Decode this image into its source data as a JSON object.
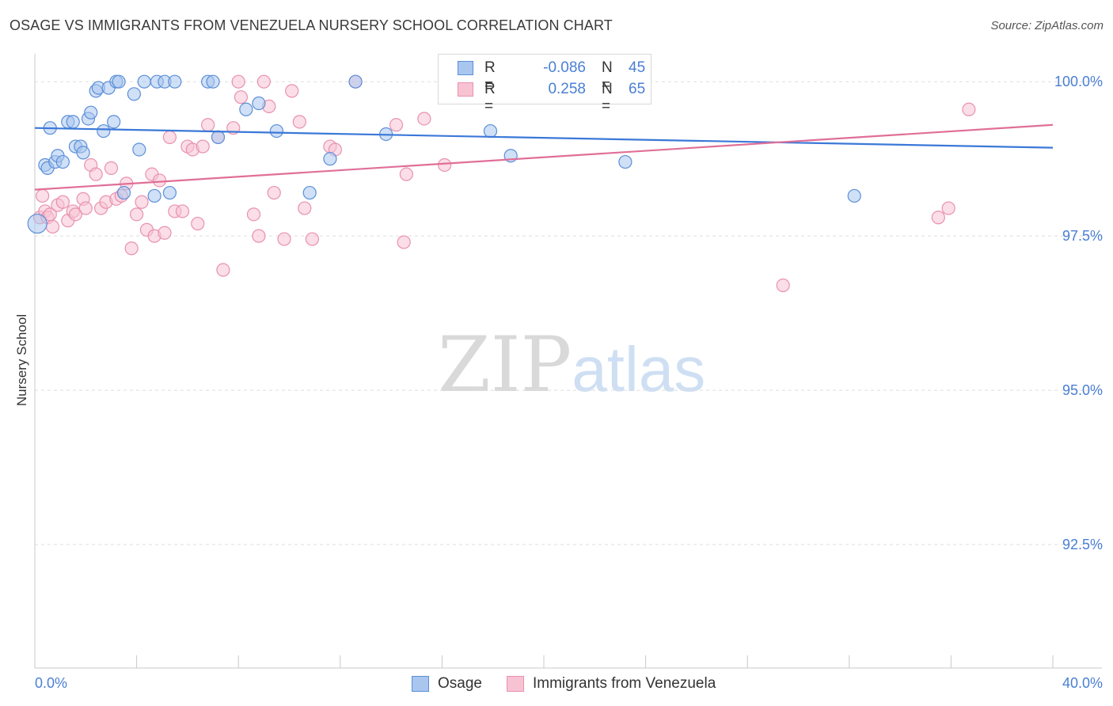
{
  "title": "OSAGE VS IMMIGRANTS FROM VENEZUELA NURSERY SCHOOL CORRELATION CHART",
  "source": "Source: ZipAtlas.com",
  "watermark": {
    "zip": "ZIP",
    "atlas": "atlas"
  },
  "colors": {
    "blue_fill": "#a9c6ef",
    "blue_stroke": "#5b8fd8",
    "blue_line": "#3b78d8",
    "pink_fill": "#f7c3d3",
    "pink_stroke": "#e891ae",
    "pink_line": "#e06f98",
    "tick_label": "#4a7fd4",
    "grid": "#dddddd"
  },
  "legend": {
    "rows": [
      {
        "r_label": "R =",
        "r_value": "-0.086",
        "n_label": "N =",
        "n_value": "45"
      },
      {
        "r_label": "R =",
        "r_value": "0.258",
        "n_label": "N =",
        "n_value": "65"
      }
    ]
  },
  "chart_data": {
    "type": "scatter",
    "xlabel": "",
    "ylabel": "Nursery School",
    "xlim": [
      0,
      40
    ],
    "ylim": [
      90.5,
      100.4
    ],
    "x_tick_labels": [
      "0.0%",
      "40.0%"
    ],
    "y_ticks": [
      92.5,
      95.0,
      97.5,
      100.0
    ],
    "y_tick_labels": [
      "92.5%",
      "95.0%",
      "97.5%",
      "100.0%"
    ],
    "grid": "horizontal dashed",
    "series": [
      {
        "name": "Osage",
        "trend": {
          "x": [
            0,
            40
          ],
          "y": [
            99.25,
            98.93
          ]
        },
        "points": [
          [
            0.1,
            97.7
          ],
          [
            0.4,
            98.65
          ],
          [
            0.5,
            98.6
          ],
          [
            0.6,
            99.25
          ],
          [
            0.8,
            98.7
          ],
          [
            0.9,
            98.8
          ],
          [
            1.1,
            98.7
          ],
          [
            1.3,
            99.35
          ],
          [
            1.5,
            99.35
          ],
          [
            1.6,
            98.95
          ],
          [
            1.8,
            98.95
          ],
          [
            1.9,
            98.85
          ],
          [
            2.1,
            99.4
          ],
          [
            2.2,
            99.5
          ],
          [
            2.4,
            99.85
          ],
          [
            2.5,
            99.9
          ],
          [
            2.7,
            99.2
          ],
          [
            2.9,
            99.9
          ],
          [
            3.1,
            99.35
          ],
          [
            3.2,
            100.0
          ],
          [
            3.3,
            100.0
          ],
          [
            3.5,
            98.2
          ],
          [
            3.9,
            99.8
          ],
          [
            4.1,
            98.9
          ],
          [
            4.3,
            100.0
          ],
          [
            4.7,
            98.15
          ],
          [
            4.8,
            100.0
          ],
          [
            5.1,
            100.0
          ],
          [
            5.3,
            98.2
          ],
          [
            5.5,
            100.0
          ],
          [
            6.8,
            100.0
          ],
          [
            7.0,
            100.0
          ],
          [
            7.2,
            99.1
          ],
          [
            8.3,
            99.55
          ],
          [
            8.8,
            99.65
          ],
          [
            9.5,
            99.2
          ],
          [
            10.8,
            98.2
          ],
          [
            11.6,
            98.75
          ],
          [
            12.6,
            100.0
          ],
          [
            13.8,
            99.15
          ],
          [
            17.9,
            99.2
          ],
          [
            18.7,
            98.8
          ],
          [
            21.2,
            100.0
          ],
          [
            23.2,
            98.7
          ],
          [
            32.2,
            98.15
          ]
        ]
      },
      {
        "name": "Immigrants from Venezuela",
        "trend": {
          "x": [
            0,
            40
          ],
          "y": [
            98.25,
            99.3
          ]
        },
        "points": [
          [
            0.2,
            97.8
          ],
          [
            0.3,
            98.15
          ],
          [
            0.4,
            97.9
          ],
          [
            0.5,
            97.8
          ],
          [
            0.6,
            97.85
          ],
          [
            0.7,
            97.65
          ],
          [
            0.9,
            98.0
          ],
          [
            1.1,
            98.05
          ],
          [
            1.3,
            97.75
          ],
          [
            1.5,
            97.9
          ],
          [
            1.6,
            97.85
          ],
          [
            1.9,
            98.1
          ],
          [
            2.0,
            97.95
          ],
          [
            2.2,
            98.65
          ],
          [
            2.4,
            98.5
          ],
          [
            2.6,
            97.95
          ],
          [
            2.8,
            98.05
          ],
          [
            3.0,
            98.6
          ],
          [
            3.2,
            98.1
          ],
          [
            3.4,
            98.15
          ],
          [
            3.6,
            98.35
          ],
          [
            3.8,
            97.3
          ],
          [
            4.0,
            97.85
          ],
          [
            4.2,
            98.05
          ],
          [
            4.4,
            97.6
          ],
          [
            4.6,
            98.5
          ],
          [
            4.7,
            97.5
          ],
          [
            4.9,
            98.4
          ],
          [
            5.1,
            97.55
          ],
          [
            5.3,
            99.1
          ],
          [
            5.5,
            97.9
          ],
          [
            5.8,
            97.9
          ],
          [
            6.0,
            98.95
          ],
          [
            6.2,
            98.9
          ],
          [
            6.4,
            97.7
          ],
          [
            6.6,
            98.95
          ],
          [
            6.8,
            99.3
          ],
          [
            7.2,
            99.1
          ],
          [
            7.4,
            96.95
          ],
          [
            7.8,
            99.25
          ],
          [
            8.0,
            100.0
          ],
          [
            8.1,
            99.75
          ],
          [
            8.6,
            97.85
          ],
          [
            8.8,
            97.5
          ],
          [
            9.0,
            100.0
          ],
          [
            9.2,
            99.6
          ],
          [
            9.4,
            98.2
          ],
          [
            9.8,
            97.45
          ],
          [
            10.1,
            99.85
          ],
          [
            10.4,
            99.35
          ],
          [
            10.6,
            97.95
          ],
          [
            10.9,
            97.45
          ],
          [
            11.6,
            98.95
          ],
          [
            11.8,
            98.9
          ],
          [
            12.6,
            100.0
          ],
          [
            14.2,
            99.3
          ],
          [
            14.5,
            97.4
          ],
          [
            14.6,
            98.5
          ],
          [
            15.3,
            99.4
          ],
          [
            16.1,
            98.65
          ],
          [
            21.1,
            100.0
          ],
          [
            29.4,
            96.7
          ],
          [
            35.5,
            97.8
          ],
          [
            35.9,
            97.95
          ],
          [
            36.7,
            99.55
          ]
        ]
      }
    ]
  }
}
